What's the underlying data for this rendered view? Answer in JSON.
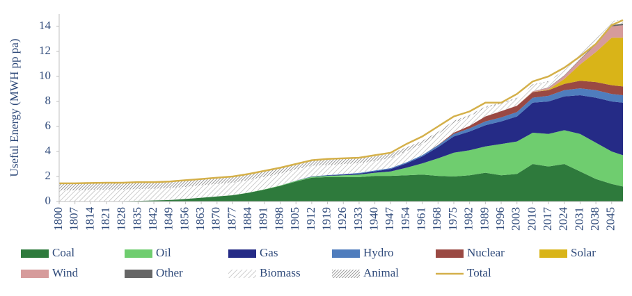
{
  "chart_data": {
    "type": "stacked-area",
    "y_label": "Useful Energy (MWH pp pa)",
    "xlim": [
      1800,
      2050
    ],
    "xticks": [
      1800,
      1807,
      1814,
      1821,
      1828,
      1835,
      1842,
      1849,
      1856,
      1863,
      1870,
      1877,
      1884,
      1891,
      1898,
      1905,
      1912,
      1919,
      1926,
      1933,
      1940,
      1947,
      1954,
      1961,
      1968,
      1975,
      1982,
      1989,
      1996,
      2003,
      2010,
      2017,
      2024,
      2031,
      2038,
      2045
    ],
    "ylim": [
      0,
      15
    ],
    "yticks": [
      0,
      2,
      4,
      6,
      8,
      10,
      12,
      14
    ],
    "x": [
      1800,
      1807,
      1814,
      1821,
      1828,
      1835,
      1842,
      1849,
      1856,
      1863,
      1870,
      1877,
      1884,
      1891,
      1898,
      1905,
      1912,
      1919,
      1926,
      1933,
      1940,
      1947,
      1954,
      1961,
      1968,
      1975,
      1982,
      1989,
      1996,
      2003,
      2010,
      2017,
      2024,
      2031,
      2038,
      2045,
      2050
    ],
    "series": [
      {
        "name": "Coal",
        "color": "#2e7a3c",
        "values": [
          0,
          0,
          0.01,
          0.02,
          0.03,
          0.05,
          0.08,
          0.12,
          0.2,
          0.3,
          0.4,
          0.5,
          0.7,
          0.95,
          1.25,
          1.6,
          1.9,
          1.95,
          1.95,
          1.95,
          2.05,
          2.05,
          2.1,
          2.15,
          2.05,
          2.0,
          2.1,
          2.3,
          2.1,
          2.2,
          3.0,
          2.8,
          3.0,
          2.4,
          1.8,
          1.4,
          1.2
        ]
      },
      {
        "name": "Oil",
        "color": "#6fcd6f",
        "values": [
          0,
          0,
          0,
          0,
          0,
          0,
          0,
          0,
          0,
          0,
          0,
          0.01,
          0.01,
          0.02,
          0.03,
          0.05,
          0.07,
          0.1,
          0.15,
          0.2,
          0.25,
          0.35,
          0.6,
          0.9,
          1.4,
          1.9,
          2.0,
          2.1,
          2.5,
          2.6,
          2.5,
          2.6,
          2.7,
          3.0,
          2.9,
          2.6,
          2.5
        ]
      },
      {
        "name": "Gas",
        "color": "#252b86",
        "values": [
          0,
          0,
          0,
          0,
          0,
          0,
          0,
          0,
          0,
          0,
          0,
          0,
          0,
          0,
          0,
          0.01,
          0.02,
          0.03,
          0.05,
          0.08,
          0.12,
          0.2,
          0.35,
          0.55,
          0.9,
          1.3,
          1.5,
          1.7,
          1.8,
          2.0,
          2.4,
          2.6,
          2.7,
          3.1,
          3.6,
          4.0,
          4.2
        ]
      },
      {
        "name": "Hydro",
        "color": "#4f7dbd",
        "values": [
          0,
          0,
          0,
          0,
          0,
          0,
          0,
          0,
          0,
          0,
          0,
          0,
          0,
          0,
          0,
          0.01,
          0.02,
          0.03,
          0.04,
          0.05,
          0.06,
          0.07,
          0.08,
          0.1,
          0.15,
          0.2,
          0.25,
          0.3,
          0.32,
          0.35,
          0.4,
          0.45,
          0.5,
          0.55,
          0.6,
          0.6,
          0.6
        ]
      },
      {
        "name": "Nuclear",
        "color": "#9a4943",
        "values": [
          0,
          0,
          0,
          0,
          0,
          0,
          0,
          0,
          0,
          0,
          0,
          0,
          0,
          0,
          0,
          0,
          0,
          0,
          0,
          0,
          0,
          0,
          0,
          0,
          0.02,
          0.1,
          0.2,
          0.4,
          0.5,
          0.5,
          0.45,
          0.45,
          0.5,
          0.6,
          0.65,
          0.7,
          0.7
        ]
      },
      {
        "name": "Solar",
        "color": "#d9b418",
        "values": [
          0,
          0,
          0,
          0,
          0,
          0,
          0,
          0,
          0,
          0,
          0,
          0,
          0,
          0,
          0,
          0,
          0,
          0,
          0,
          0,
          0,
          0,
          0,
          0,
          0,
          0,
          0,
          0,
          0,
          0,
          0.01,
          0.05,
          0.4,
          1.3,
          2.4,
          3.8,
          3.9
        ]
      },
      {
        "name": "Wind",
        "color": "#d69b9b",
        "values": [
          0,
          0,
          0,
          0,
          0,
          0,
          0,
          0,
          0,
          0,
          0,
          0,
          0,
          0,
          0,
          0,
          0,
          0,
          0,
          0,
          0,
          0,
          0,
          0,
          0,
          0,
          0,
          0,
          0,
          0.02,
          0.05,
          0.15,
          0.25,
          0.4,
          0.6,
          0.9,
          1.0
        ]
      },
      {
        "name": "Other",
        "color": "#666666",
        "values": [
          0,
          0,
          0,
          0,
          0,
          0,
          0,
          0,
          0,
          0,
          0,
          0,
          0,
          0,
          0,
          0,
          0,
          0,
          0,
          0,
          0,
          0,
          0,
          0,
          0,
          0,
          0,
          0,
          0,
          0,
          0,
          0.02,
          0.03,
          0.04,
          0.06,
          0.1,
          0.12
        ]
      },
      {
        "name": "Biomass",
        "color": "#bdbdbd",
        "hatch": true,
        "values": [
          0.9,
          0.9,
          0.92,
          0.93,
          0.92,
          0.95,
          0.94,
          0.95,
          0.97,
          1.0,
          1.0,
          1.0,
          1.0,
          1.0,
          0.95,
          0.9,
          0.85,
          0.8,
          0.8,
          0.78,
          0.75,
          0.8,
          0.9,
          0.9,
          0.85,
          0.8,
          0.75,
          0.7,
          0.6,
          0.55,
          0.5,
          0.45,
          0.4,
          0.35,
          0.33,
          0.3,
          0.28
        ]
      },
      {
        "name": "Animal",
        "color": "#7a7a7a",
        "hatch": true,
        "values": [
          0.55,
          0.55,
          0.55,
          0.55,
          0.55,
          0.55,
          0.53,
          0.53,
          0.53,
          0.5,
          0.5,
          0.49,
          0.49,
          0.48,
          0.47,
          0.44,
          0.44,
          0.42,
          0.4,
          0.4,
          0.38,
          0.35,
          0.3,
          0.25,
          0.2,
          0.15,
          0.12,
          0.1,
          0.08,
          0.07,
          0.06,
          0.05,
          0.05,
          0.04,
          0.04,
          0.03,
          0.03
        ]
      }
    ],
    "total": {
      "name": "Total",
      "color": "#d4b04a",
      "values": [
        1.45,
        1.45,
        1.48,
        1.5,
        1.5,
        1.55,
        1.55,
        1.6,
        1.7,
        1.8,
        1.9,
        2.0,
        2.2,
        2.45,
        2.7,
        3.0,
        3.3,
        3.4,
        3.45,
        3.5,
        3.7,
        3.9,
        4.6,
        5.2,
        6.0,
        6.8,
        7.2,
        7.9,
        7.9,
        8.6,
        9.6,
        10.0,
        10.7,
        11.6,
        12.6,
        14.1,
        14.5
      ]
    }
  }
}
